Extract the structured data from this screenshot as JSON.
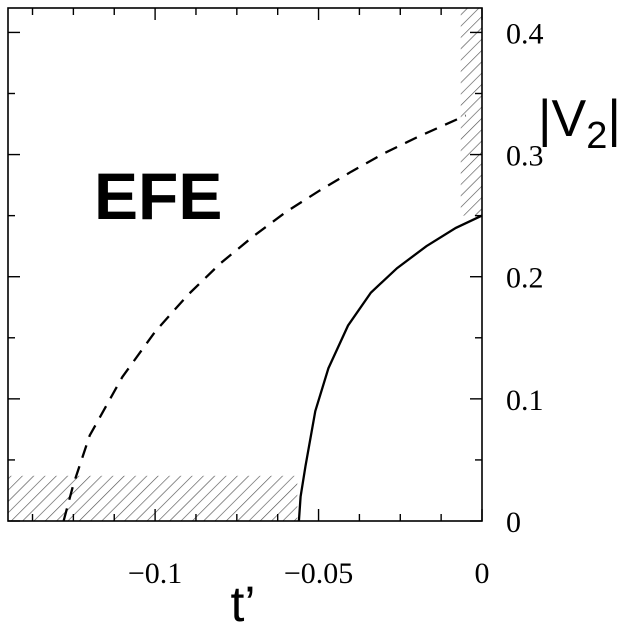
{
  "chart_data": {
    "type": "line",
    "title": "",
    "xlabel": "t’",
    "ylabel": {
      "main": "|V",
      "sub": "2",
      "end": "|"
    },
    "xlim": [
      -0.145,
      0
    ],
    "ylim": [
      0,
      0.42
    ],
    "x_ticks": [
      {
        "value": -0.1,
        "label": "−0.1"
      },
      {
        "value": -0.05,
        "label": "−0.05"
      },
      {
        "value": 0,
        "label": "0"
      }
    ],
    "y_ticks": [
      {
        "value": 0,
        "label": "0"
      },
      {
        "value": 0.1,
        "label": "0.1"
      },
      {
        "value": 0.2,
        "label": "0.2"
      },
      {
        "value": 0.3,
        "label": "0.3"
      },
      {
        "value": 0.4,
        "label": "0.4"
      }
    ],
    "grid": false,
    "annotations": [
      {
        "text": "EFE",
        "x": -0.12,
        "y": 0.275
      }
    ],
    "series": [
      {
        "style": "dashed",
        "color": "#000000",
        "x": [
          -0.128,
          -0.125,
          -0.12,
          -0.11,
          -0.1,
          -0.09,
          -0.08,
          -0.07,
          -0.06,
          -0.05,
          -0.04,
          -0.03,
          -0.02,
          -0.01,
          -0.005
        ],
        "y": [
          0.0,
          0.03,
          0.07,
          0.118,
          0.155,
          0.185,
          0.211,
          0.233,
          0.253,
          0.27,
          0.286,
          0.301,
          0.314,
          0.326,
          0.332
        ]
      },
      {
        "style": "solid",
        "color": "#000000",
        "x": [
          -0.056,
          -0.0555,
          -0.054,
          -0.051,
          -0.047,
          -0.041,
          -0.034,
          -0.026,
          -0.017,
          -0.008,
          0.0
        ],
        "y": [
          0.0,
          0.02,
          0.045,
          0.09,
          0.125,
          0.16,
          0.187,
          0.207,
          0.225,
          0.24,
          0.25
        ]
      }
    ],
    "hatched_regions": [
      {
        "x": [
          -0.145,
          -0.0565
        ],
        "y": [
          0.0,
          0.037
        ]
      },
      {
        "x": [
          -0.0065,
          0.0
        ],
        "y": [
          0.25,
          0.42
        ]
      }
    ]
  }
}
